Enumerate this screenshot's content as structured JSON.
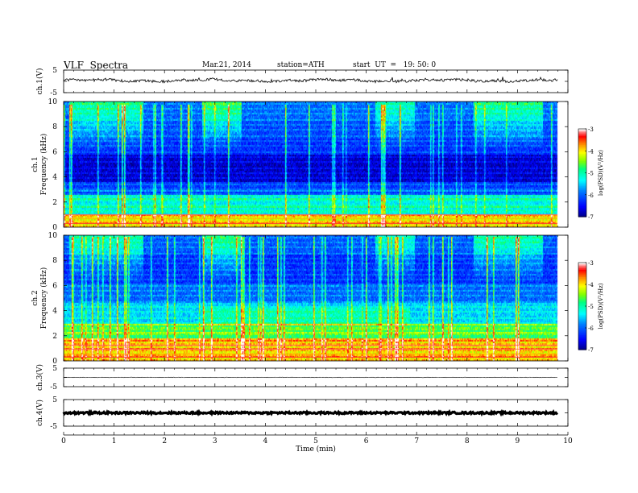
{
  "header": {
    "title": "VLF  Spectra",
    "date": "Mar.21, 2014",
    "station": "station=ATH",
    "start": "start  UT  =   19: 50: 0"
  },
  "chart_data": [
    {
      "type": "line",
      "panel": "ch1-waveform",
      "ylabel": "ch.1(V)",
      "ylim": [
        -5,
        5
      ],
      "yticks": [
        "5",
        "-5"
      ],
      "baseline": 0.4,
      "noise_amplitude": 0.6,
      "xlim": [
        0,
        10
      ],
      "data_end_min": 9.8
    },
    {
      "type": "heatmap",
      "panel": "ch1-spectrogram",
      "ylabel": "Frequency  (kHz)",
      "channel_label": "ch.1",
      "ylim": [
        0,
        10
      ],
      "yticks": [
        "0",
        "2",
        "4",
        "6",
        "8",
        "10"
      ],
      "xlim": [
        0,
        10
      ],
      "data_end_min": 9.8,
      "colorbar": {
        "label": "log(PSD)(V²/Hz)",
        "range": [
          -7,
          -3
        ],
        "ticks": [
          "-3",
          "-4",
          "-5",
          "-6",
          "-7"
        ],
        "colors": [
          "#000080",
          "#0000ff",
          "#0080ff",
          "#00ffff",
          "#00ff80",
          "#80ff00",
          "#ffff00",
          "#ff8000",
          "#ff0000",
          "#ff8080",
          "#ffffff"
        ]
      }
    },
    {
      "type": "heatmap",
      "panel": "ch2-spectrogram",
      "ylabel": "Frequency  (kHz)",
      "channel_label": "ch.2",
      "ylim": [
        0,
        10
      ],
      "yticks": [
        "0",
        "2",
        "4",
        "6",
        "8",
        "10"
      ],
      "xlim": [
        0,
        10
      ],
      "data_end_min": 9.8,
      "colorbar": {
        "label": "log(PSD)(V²/Hz)",
        "range": [
          -7,
          -3
        ],
        "ticks": [
          "-3",
          "-4",
          "-5",
          "-6",
          "-7"
        ],
        "colors": [
          "#000080",
          "#0000ff",
          "#0080ff",
          "#00ffff",
          "#00ff80",
          "#80ff00",
          "#ffff00",
          "#ff8000",
          "#ff0000",
          "#ff8080",
          "#ffffff"
        ]
      }
    },
    {
      "type": "line",
      "panel": "ch3-waveform",
      "ylabel": "ch.3(V)",
      "ylim": [
        -5,
        5
      ],
      "yticks": [
        "5",
        "-5"
      ],
      "baseline": 0,
      "noise_amplitude": 0.15,
      "xlim": [
        0,
        10
      ],
      "data_end_min": 9.8
    },
    {
      "type": "line",
      "panel": "ch4-waveform",
      "ylabel": "ch.4(V)",
      "ylim": [
        -5,
        5
      ],
      "yticks": [
        "5",
        "-5"
      ],
      "baseline": 0,
      "noise_amplitude": 0.35,
      "xlim": [
        0,
        10
      ],
      "data_end_min": 9.8
    }
  ],
  "xaxis": {
    "label": "Time  (min)",
    "ticks": [
      "0",
      "1",
      "2",
      "3",
      "4",
      "5",
      "6",
      "7",
      "8",
      "9",
      "10"
    ]
  }
}
